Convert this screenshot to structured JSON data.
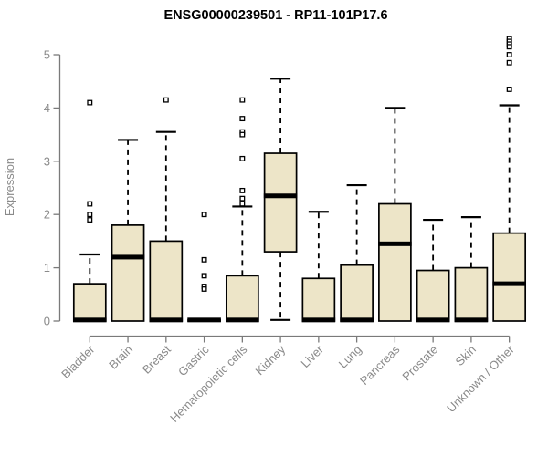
{
  "figure": {
    "title": "ENSG00000239501 - RP11-101P17.6"
  },
  "chart_data": {
    "type": "boxplot",
    "title": "ENSG00000239501 - RP11-101P17.6",
    "xlabel": "",
    "ylabel": "Expression",
    "ylim": [
      0,
      5.4
    ],
    "yticks": [
      0,
      1,
      2,
      3,
      4,
      5
    ],
    "grid": false,
    "legend": false,
    "categories": [
      "Bladder",
      "Brain",
      "Breast",
      "Gastric",
      "Hematopoietic cells",
      "Kidney",
      "Liver",
      "Lung",
      "Pancreas",
      "Prostate",
      "Skin",
      "Unknown / Other"
    ],
    "series": [
      {
        "category": "Bladder",
        "whisker_low": 0,
        "q1": 0,
        "median": 0.02,
        "q3": 0.7,
        "whisker_high": 1.25,
        "outliers": [
          4.1,
          2.2,
          2.0,
          1.9
        ]
      },
      {
        "category": "Brain",
        "whisker_low": 0,
        "q1": 0,
        "median": 1.2,
        "q3": 1.8,
        "whisker_high": 3.4,
        "outliers": []
      },
      {
        "category": "Breast",
        "whisker_low": 0,
        "q1": 0,
        "median": 0.02,
        "q3": 1.5,
        "whisker_high": 3.55,
        "outliers": [
          4.15
        ]
      },
      {
        "category": "Gastric",
        "whisker_low": 0,
        "q1": 0,
        "median": 0.02,
        "q3": 0.02,
        "whisker_high": 0.02,
        "outliers": [
          2.0,
          1.15,
          0.85,
          0.65,
          0.6
        ]
      },
      {
        "category": "Hematopoietic cells",
        "whisker_low": 0,
        "q1": 0,
        "median": 0.02,
        "q3": 0.85,
        "whisker_high": 2.15,
        "outliers": [
          4.15,
          3.8,
          3.55,
          3.5,
          3.05,
          2.45,
          2.3,
          2.2
        ]
      },
      {
        "category": "Kidney",
        "whisker_low": 0.02,
        "q1": 1.3,
        "median": 2.35,
        "q3": 3.15,
        "whisker_high": 4.55,
        "outliers": []
      },
      {
        "category": "Liver",
        "whisker_low": 0,
        "q1": 0,
        "median": 0.02,
        "q3": 0.8,
        "whisker_high": 2.05,
        "outliers": []
      },
      {
        "category": "Lung",
        "whisker_low": 0,
        "q1": 0,
        "median": 0.02,
        "q3": 1.05,
        "whisker_high": 2.55,
        "outliers": []
      },
      {
        "category": "Pancreas",
        "whisker_low": 0,
        "q1": 0,
        "median": 1.45,
        "q3": 2.2,
        "whisker_high": 4.0,
        "outliers": []
      },
      {
        "category": "Prostate",
        "whisker_low": 0,
        "q1": 0,
        "median": 0.02,
        "q3": 0.95,
        "whisker_high": 1.9,
        "outliers": []
      },
      {
        "category": "Skin",
        "whisker_low": 0,
        "q1": 0,
        "median": 0.02,
        "q3": 1.0,
        "whisker_high": 1.95,
        "outliers": []
      },
      {
        "category": "Unknown / Other",
        "whisker_low": 0,
        "q1": 0,
        "median": 0.7,
        "q3": 1.65,
        "whisker_high": 4.05,
        "outliers": [
          5.3,
          5.25,
          5.2,
          5.15,
          5.0,
          4.85,
          4.35
        ]
      }
    ],
    "colors": {
      "box_fill": "#EDE5C8",
      "box_stroke": "#000000",
      "median": "#000000",
      "whisker": "#000000",
      "outlier_stroke": "#000000",
      "axis": "#7a7a7a",
      "tick_label": "#8a8a8a",
      "title": "#000000",
      "background": "#ffffff"
    }
  }
}
